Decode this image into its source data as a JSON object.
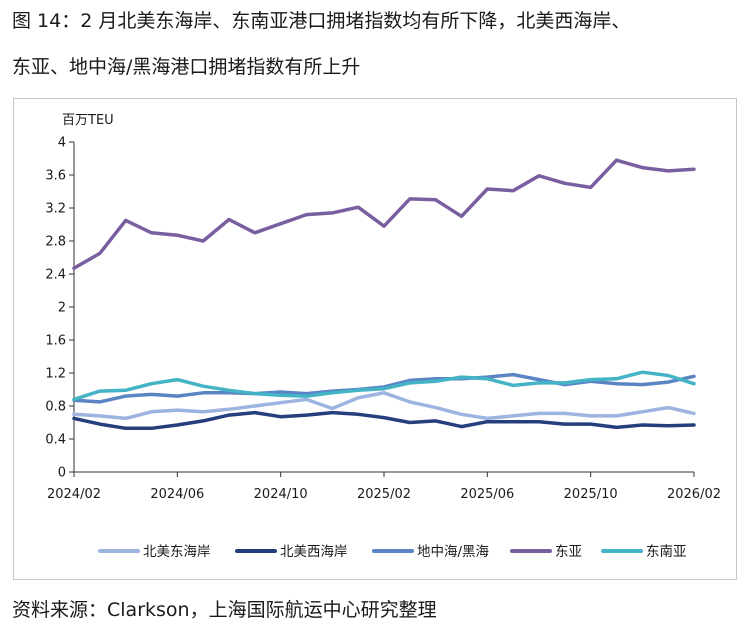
{
  "title_line1": "图 14：2 月北美东海岸、东南亚港口拥堵指数均有所下降，北美西海岸、",
  "title_line2": "东亚、地中海/黑海港口拥堵指数有所上升",
  "source": "资料来源：Clarkson，上海国际航运中心研究整理",
  "chart_data": {
    "type": "line",
    "ylabel": "百万TEU",
    "ylim": [
      0,
      4
    ],
    "yticks": [
      0,
      0.4,
      0.8,
      1.2,
      1.6,
      2,
      2.4,
      2.8,
      3.2,
      3.6,
      4
    ],
    "ytick_labels": [
      "0",
      "0.4",
      "0.8",
      "1.2",
      "1.6",
      "2",
      "2.4",
      "2.8",
      "3.2",
      "3.6",
      "4"
    ],
    "x_count": 25,
    "xtick_labels": [
      {
        "index": 0,
        "label": "2024/02"
      },
      {
        "index": 4,
        "label": "2024/06"
      },
      {
        "index": 8,
        "label": "2024/10"
      },
      {
        "index": 12,
        "label": "2025/02"
      },
      {
        "index": 16,
        "label": "2025/06"
      },
      {
        "index": 20,
        "label": "2025/10"
      },
      {
        "index": 24,
        "label": "2026/02"
      }
    ],
    "legend_position": "bottom",
    "series": [
      {
        "name": "北美东海岸",
        "color": "#9db3e0",
        "values": [
          0.7,
          0.68,
          0.65,
          0.73,
          0.75,
          0.73,
          0.76,
          0.8,
          0.84,
          0.88,
          0.77,
          0.9,
          0.96,
          0.85,
          0.78,
          0.7,
          0.65,
          0.68,
          0.71,
          0.71,
          0.68,
          0.68,
          0.73,
          0.78,
          0.71
        ]
      },
      {
        "name": "北美西海岸",
        "color": "#253f7c",
        "values": [
          0.65,
          0.58,
          0.53,
          0.53,
          0.57,
          0.62,
          0.69,
          0.72,
          0.67,
          0.69,
          0.72,
          0.7,
          0.66,
          0.6,
          0.62,
          0.55,
          0.61,
          0.61,
          0.61,
          0.58,
          0.58,
          0.54,
          0.57,
          0.56,
          0.57
        ]
      },
      {
        "name": "地中海/黑海",
        "color": "#5b84c4",
        "values": [
          0.87,
          0.85,
          0.92,
          0.94,
          0.92,
          0.96,
          0.96,
          0.95,
          0.97,
          0.95,
          0.98,
          1.0,
          1.03,
          1.11,
          1.13,
          1.13,
          1.15,
          1.18,
          1.12,
          1.06,
          1.1,
          1.07,
          1.06,
          1.09,
          1.16
        ]
      },
      {
        "name": "东亚",
        "color": "#7a5fa0",
        "values": [
          2.47,
          2.65,
          3.05,
          2.9,
          2.87,
          2.8,
          3.06,
          2.9,
          3.01,
          3.12,
          3.14,
          3.21,
          2.98,
          3.31,
          3.3,
          3.1,
          3.43,
          3.41,
          3.59,
          3.5,
          3.45,
          3.78,
          3.69,
          3.65,
          3.67
        ]
      },
      {
        "name": "东南亚",
        "color": "#45b3c6",
        "values": [
          0.88,
          0.98,
          0.99,
          1.07,
          1.12,
          1.04,
          0.99,
          0.95,
          0.93,
          0.92,
          0.96,
          0.99,
          1.01,
          1.08,
          1.1,
          1.15,
          1.13,
          1.05,
          1.08,
          1.08,
          1.12,
          1.13,
          1.21,
          1.17,
          1.07
        ]
      }
    ]
  }
}
